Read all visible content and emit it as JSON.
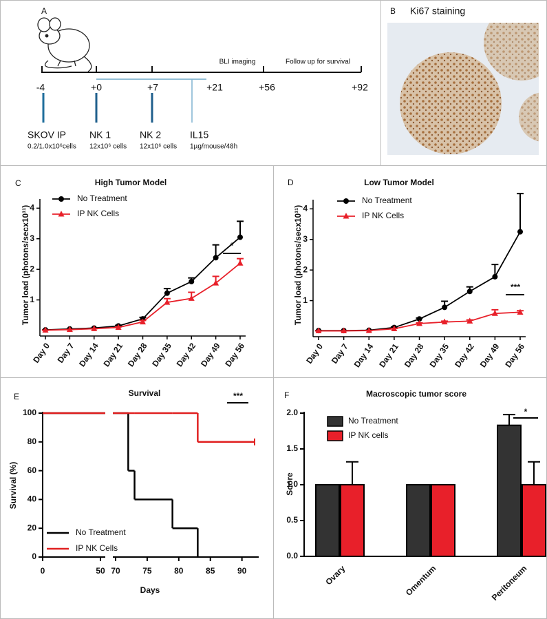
{
  "timeline": {
    "label": "A",
    "ticks": [
      "-4",
      "+0",
      "+7",
      "+21",
      "+56",
      "+92"
    ],
    "phases": [
      "BLI imaging",
      "Follow up for survival"
    ],
    "events": [
      {
        "name": "SKOV IP",
        "detail": "0.2/1.0x10⁶cells"
      },
      {
        "name": "NK 1",
        "detail": "12x10⁶ cells"
      },
      {
        "name": "NK 2",
        "detail": "12x10⁶ cells"
      },
      {
        "name": "IL15",
        "detail": "1µg/mouse/48h"
      }
    ]
  },
  "image_panel": {
    "label": "B",
    "title": "Ki67 staining"
  },
  "chart_data": [
    {
      "type": "line",
      "panel_label": "C",
      "title": "High Tumor Model",
      "y_label": "Tumor load (photons/secx10¹¹)",
      "categories": [
        "Day 0",
        "Day 7",
        "Day 14",
        "Day 21",
        "Day 28",
        "Day 35",
        "Day 42",
        "Day 49",
        "Day 56"
      ],
      "series": [
        {
          "name": "No Treatment",
          "color": "#000000",
          "marker": "circle",
          "values": [
            0.02,
            0.05,
            0.08,
            0.15,
            0.38,
            1.22,
            1.6,
            2.38,
            3.05
          ],
          "errors": [
            0,
            0,
            0,
            0.02,
            0.05,
            0.15,
            0.12,
            0.42,
            0.52
          ]
        },
        {
          "name": "IP NK Cells",
          "color": "#e8202a",
          "marker": "triangle",
          "values": [
            0.01,
            0.03,
            0.06,
            0.1,
            0.28,
            0.92,
            1.05,
            1.55,
            2.2
          ],
          "errors": [
            0,
            0,
            0,
            0.02,
            0.05,
            0.12,
            0.2,
            0.22,
            0.15
          ]
        }
      ],
      "ylim": [
        0,
        4.3
      ],
      "yticks": [
        1,
        2,
        3,
        4
      ],
      "annotation": "*"
    },
    {
      "type": "line",
      "panel_label": "D",
      "title": "Low Tumor Model",
      "y_label": "Tumor load (photons/secx10¹¹)",
      "categories": [
        "Day 0",
        "Day 7",
        "Day 14",
        "Day 21",
        "Day 28",
        "Day 35",
        "Day 42",
        "Day 49",
        "Day 56"
      ],
      "series": [
        {
          "name": "No Treatment",
          "color": "#000000",
          "marker": "circle",
          "values": [
            0.02,
            0.02,
            0.03,
            0.12,
            0.4,
            0.78,
            1.3,
            1.78,
            3.25
          ],
          "errors": [
            0,
            0,
            0,
            0.02,
            0.03,
            0.2,
            0.15,
            0.4,
            1.25
          ]
        },
        {
          "name": "IP NK Cells",
          "color": "#e8202a",
          "marker": "triangle",
          "values": [
            0.01,
            0.01,
            0.02,
            0.08,
            0.25,
            0.3,
            0.33,
            0.58,
            0.62
          ],
          "errors": [
            0,
            0,
            0,
            0.01,
            0.02,
            0.03,
            0.04,
            0.12,
            0.05
          ]
        }
      ],
      "ylim": [
        0,
        4.3
      ],
      "yticks": [
        1,
        2,
        3,
        4
      ],
      "annotation": "***"
    },
    {
      "type": "step",
      "panel_label": "E",
      "title": "Survival",
      "x_label": "Days",
      "y_label": "Survival (%)",
      "x": [
        0,
        72,
        73,
        79,
        83,
        92
      ],
      "series": [
        {
          "name": "No Treatment",
          "color": "#000000",
          "values": [
            100,
            60,
            40,
            20,
            0,
            null
          ]
        },
        {
          "name": "IP NK Cells",
          "color": "#e02020",
          "values": [
            100,
            100,
            100,
            100,
            80,
            80
          ]
        }
      ],
      "x_segments": [
        [
          0,
          50
        ],
        [
          70,
          92
        ]
      ],
      "xticks": [
        0,
        50,
        70,
        75,
        80,
        85,
        90
      ],
      "ylim": [
        0,
        100
      ],
      "yticks": [
        0,
        20,
        40,
        60,
        80,
        100
      ],
      "annotation": "***"
    },
    {
      "type": "bar",
      "panel_label": "F",
      "title": "Macroscopic tumor score",
      "y_label": "Score",
      "categories": [
        "Ovary",
        "Omentum",
        "Peritoneum"
      ],
      "series": [
        {
          "name": "No Treatment",
          "color": "#333333",
          "values": [
            1,
            1,
            1.83
          ],
          "errors": [
            0,
            0,
            0.15
          ]
        },
        {
          "name": "IP NK cells",
          "color": "#e8202a",
          "values": [
            1,
            1,
            1
          ],
          "errors": [
            0.32,
            0,
            0.32
          ]
        }
      ],
      "ylim": [
        0,
        2
      ],
      "yticks": [
        {
          "value": 0,
          "label": "0.0"
        },
        0.5,
        {
          "value": 1,
          "label": "1.0"
        },
        1.5,
        {
          "value": 2,
          "label": "2.0"
        }
      ],
      "annotation": "*"
    }
  ]
}
